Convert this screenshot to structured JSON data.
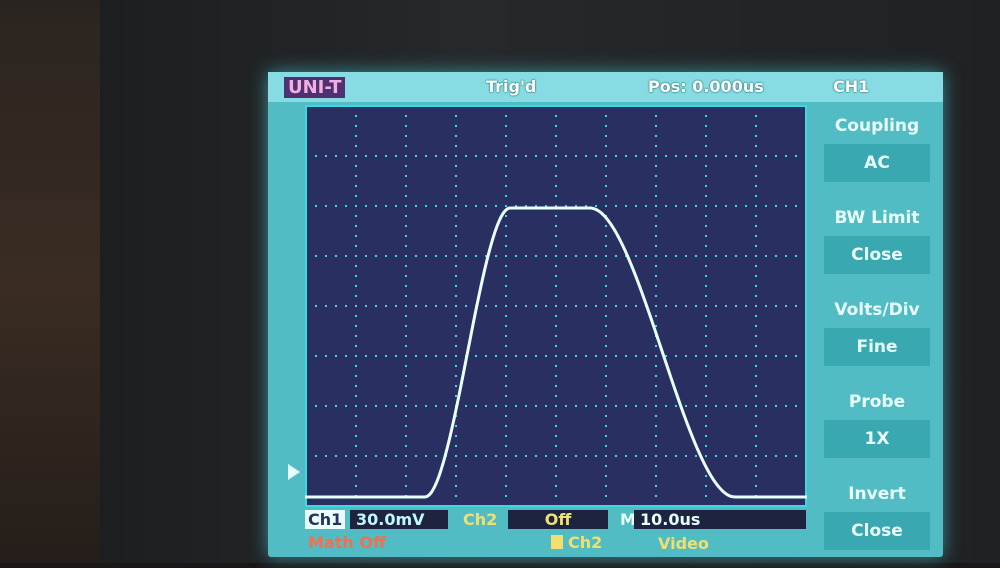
{
  "header": {
    "logo": "UNI-T",
    "trigger_status": "Trig'd",
    "position": "Pos: 0.000us",
    "channel": "CH1"
  },
  "menu": [
    {
      "label": "Coupling",
      "value": "AC"
    },
    {
      "label": "BW Limit",
      "value": "Close"
    },
    {
      "label": "Volts/Div",
      "value": "Fine"
    },
    {
      "label": "Probe",
      "value": "1X"
    },
    {
      "label": "Invert",
      "value": "Close"
    }
  ],
  "status": {
    "ch1_label": "Ch1",
    "ch1_scale": "30.0mV",
    "ch2_label": "Ch2",
    "ch2_scale": "Off",
    "timebase_label": "M",
    "timebase": "10.0us",
    "math": "Math Off",
    "trigger_source": "Ch2",
    "trigger_mode": "Video"
  },
  "colors": {
    "trace": "#e8ffff",
    "grid_bg": "#2a2f62",
    "screen": "#52bcc4",
    "ch2": "#f0e070",
    "math": "#f07050"
  }
}
